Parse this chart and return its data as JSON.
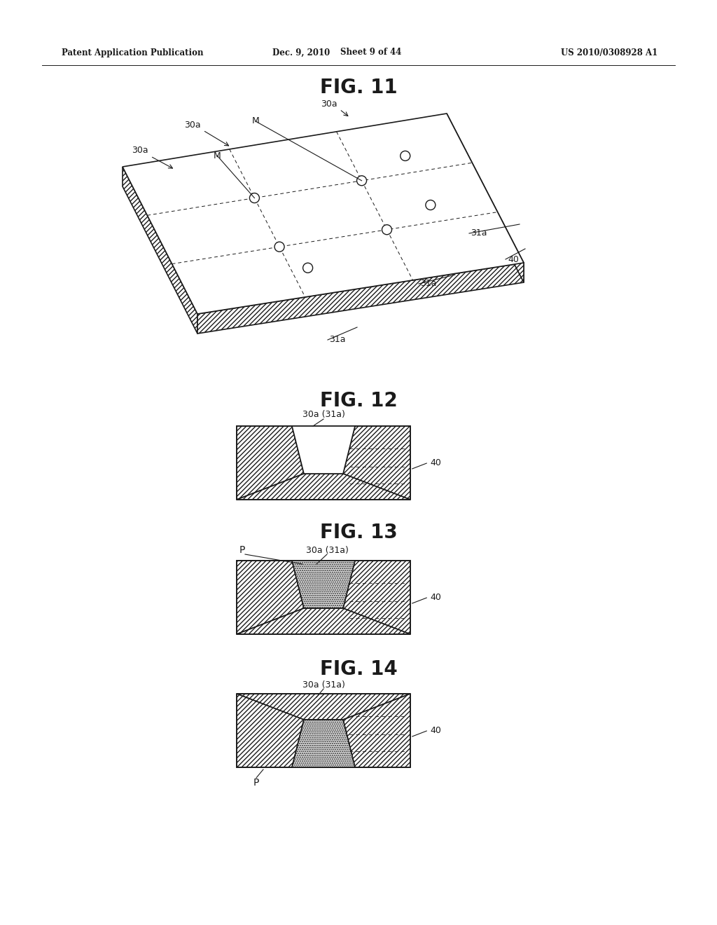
{
  "header_left": "Patent Application Publication",
  "header_mid": "Dec. 9, 2010   Sheet 9 of 44",
  "header_right": "US 2010/0308928 A1",
  "fig11_title": "FIG. 11",
  "fig12_title": "FIG. 12",
  "fig13_title": "FIG. 13",
  "fig14_title": "FIG. 14",
  "bg_color": "#ffffff",
  "line_color": "#1a1a1a"
}
